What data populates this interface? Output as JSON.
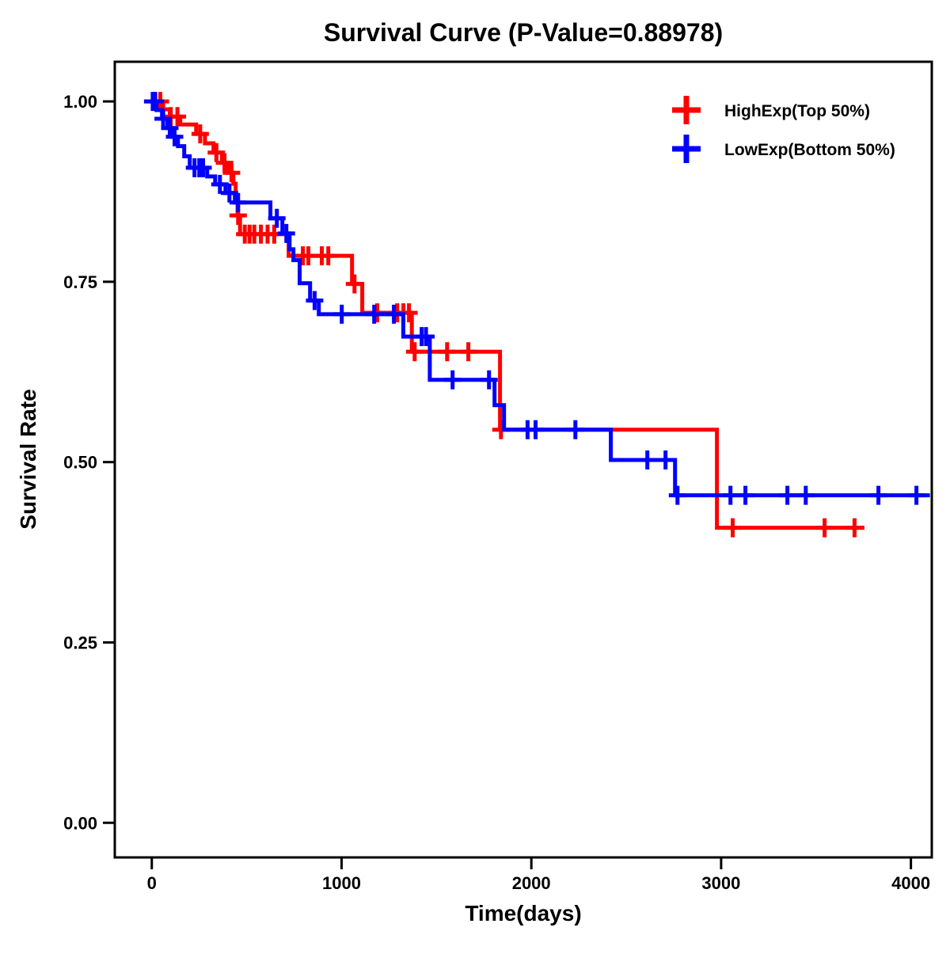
{
  "title": "Survival Curve (P-Value=0.88978)",
  "x_axis": {
    "label": "Time(days)",
    "ticks": [
      0,
      1000,
      2000,
      3000,
      4000
    ],
    "tick_labels": [
      "0",
      "1000",
      "2000",
      "3000",
      "4000"
    ]
  },
  "y_axis": {
    "label": "Survival Rate",
    "ticks": [
      0,
      0.25,
      0.5,
      0.75,
      1
    ],
    "tick_labels": [
      "0.00",
      "0.25",
      "0.50",
      "0.75",
      "1.00"
    ]
  },
  "legend": [
    {
      "label": "HighExp(Top 50%)",
      "color": "#FF0000",
      "symbol": "plus-icon"
    },
    {
      "label": "LowExp(Bottom 50%)",
      "color": "#0000FF",
      "symbol": "plus-icon"
    }
  ],
  "colors": {
    "high_exp": "#FF0000",
    "low_exp": "#0000FF",
    "axis": "#000000",
    "background": "#FFFFFF"
  },
  "p_value": "0.88978",
  "chart_data": {
    "type": "line",
    "subtype": "kaplan-meier-step",
    "title": "Survival Curve (P-Value=0.88978)",
    "xlabel": "Time(days)",
    "ylabel": "Survival Rate",
    "xlim": [
      -195,
      4110
    ],
    "ylim": [
      -0.048,
      1.055
    ],
    "grid": false,
    "legend_position": "top-right",
    "series": [
      {
        "name": "HighExp(Top 50%)",
        "color": "#FF0000",
        "steps": [
          [
            0,
            1.0
          ],
          [
            60,
            0.989
          ],
          [
            95,
            0.979
          ],
          [
            150,
            0.968
          ],
          [
            234,
            0.955
          ],
          [
            280,
            0.942
          ],
          [
            325,
            0.929
          ],
          [
            370,
            0.915
          ],
          [
            400,
            0.901
          ],
          [
            430,
            0.886
          ],
          [
            442,
            0.864
          ],
          [
            452,
            0.842
          ],
          [
            465,
            0.816
          ],
          [
            721,
            0.786
          ],
          [
            1055,
            0.747
          ],
          [
            1109,
            0.707
          ],
          [
            1370,
            0.653
          ],
          [
            1835,
            0.545
          ],
          [
            2978,
            0.409
          ]
        ],
        "end_day": 3755,
        "censor_days": [
          10,
          45,
          100,
          135,
          255,
          340,
          383,
          420,
          455,
          490,
          515,
          540,
          575,
          610,
          645,
          796,
          825,
          896,
          930,
          1068,
          1188,
          1293,
          1326,
          1355,
          1385,
          1556,
          1668,
          1840,
          3061,
          3545,
          3703
        ]
      },
      {
        "name": "LowExp(Bottom 50%)",
        "color": "#0000FF",
        "steps": [
          [
            0,
            1.0
          ],
          [
            25,
            0.988
          ],
          [
            54,
            0.976
          ],
          [
            83,
            0.963
          ],
          [
            108,
            0.951
          ],
          [
            138,
            0.938
          ],
          [
            171,
            0.924
          ],
          [
            200,
            0.908
          ],
          [
            292,
            0.896
          ],
          [
            334,
            0.885
          ],
          [
            388,
            0.873
          ],
          [
            438,
            0.86
          ],
          [
            625,
            0.838
          ],
          [
            688,
            0.817
          ],
          [
            726,
            0.795
          ],
          [
            746,
            0.78
          ],
          [
            779,
            0.748
          ],
          [
            834,
            0.724
          ],
          [
            880,
            0.705
          ],
          [
            1325,
            0.674
          ],
          [
            1465,
            0.614
          ],
          [
            1806,
            0.579
          ],
          [
            1856,
            0.545
          ],
          [
            2419,
            0.503
          ],
          [
            2757,
            0.454
          ]
        ],
        "end_day": 4100,
        "censor_days": [
          5,
          18,
          60,
          95,
          120,
          225,
          250,
          270,
          359,
          409,
          455,
          659,
          709,
          858,
          1001,
          1172,
          1276,
          1422,
          1445,
          1585,
          1777,
          1980,
          2022,
          2232,
          2611,
          2707,
          2770,
          3049,
          3128,
          3349,
          3446,
          3829,
          4029
        ]
      }
    ]
  }
}
